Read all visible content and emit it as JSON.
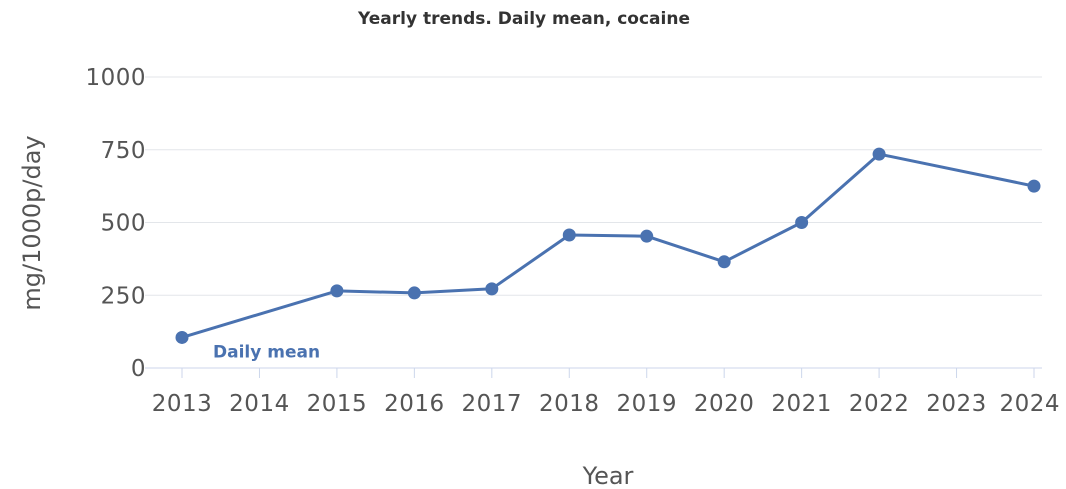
{
  "chart_data": {
    "type": "line",
    "title": "Yearly trends. Daily mean, cocaine",
    "xlabel": "Year",
    "ylabel": "mg/1000p/day",
    "ylim": [
      0,
      1000
    ],
    "yticks": [
      0,
      250,
      500,
      750,
      1000
    ],
    "xticks": [
      2013,
      2014,
      2015,
      2016,
      2017,
      2018,
      2019,
      2020,
      2021,
      2022,
      2023,
      2024
    ],
    "grid": true,
    "legend": "none",
    "series": [
      {
        "name": "Daily mean",
        "color": "#4a72b0",
        "x": [
          2013,
          2015,
          2016,
          2017,
          2018,
          2019,
          2020,
          2021,
          2022,
          2024
        ],
        "values": [
          105,
          265,
          258,
          272,
          457,
          453,
          365,
          500,
          735,
          625
        ]
      }
    ]
  }
}
